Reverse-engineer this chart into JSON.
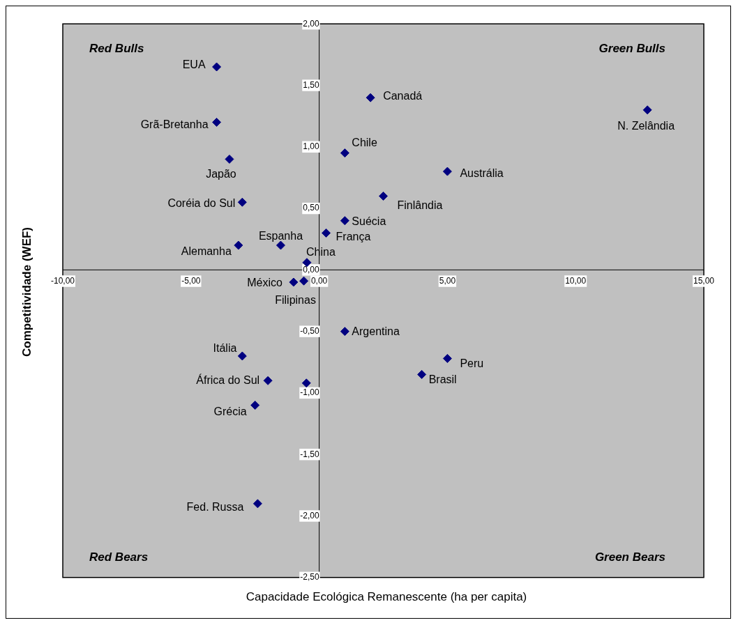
{
  "chart_data": {
    "type": "scatter",
    "xlabel": "Capacidade Ecológica Remanescente (ha per capita)",
    "ylabel": "Competitividade (WEF)",
    "xlim": [
      -10,
      15
    ],
    "xticks": [
      {
        "value": -10,
        "label": "-10,00"
      },
      {
        "value": -5,
        "label": "-5,00"
      },
      {
        "value": 0,
        "label": "0,00"
      },
      {
        "value": 5,
        "label": "5,00"
      },
      {
        "value": 10,
        "label": "10,00"
      },
      {
        "value": 15,
        "label": "15,00"
      }
    ],
    "ylim": [
      -2.5,
      2
    ],
    "yticks": [
      {
        "value": -2.5,
        "label": "-2,50"
      },
      {
        "value": -2,
        "label": "-2,00"
      },
      {
        "value": -1.5,
        "label": "-1,50"
      },
      {
        "value": -1,
        "label": "-1,00"
      },
      {
        "value": -0.5,
        "label": "-0,50"
      },
      {
        "value": 0,
        "label": "0,00"
      },
      {
        "value": 0.5,
        "label": "0,50"
      },
      {
        "value": 1,
        "label": "1,00"
      },
      {
        "value": 1.5,
        "label": "1,50"
      },
      {
        "value": 2,
        "label": "2,00"
      }
    ],
    "grid": false,
    "legend": false,
    "marker": "diamond",
    "series": [
      {
        "color": "#000080",
        "x": [
          -4.0,
          -4.0,
          -3.5,
          -3.0,
          -3.15,
          -1.5,
          -0.48,
          -1.0,
          -0.6,
          2.0,
          12.8,
          1.0,
          5.0,
          2.5,
          1.0,
          0.27,
          1.0,
          5.0,
          4.0,
          -3.0,
          -2.0,
          -0.5,
          -2.5,
          -2.4
        ],
        "values": [
          1.65,
          1.2,
          0.9,
          0.55,
          0.2,
          0.2,
          0.06,
          -0.1,
          -0.09,
          1.4,
          1.3,
          0.95,
          0.8,
          0.6,
          0.4,
          0.3,
          -0.5,
          -0.72,
          -0.85,
          -0.7,
          -0.9,
          -0.92,
          -1.1,
          -1.9
        ]
      }
    ],
    "annotations": [
      "Red Bulls",
      "Green Bulls",
      "Red Bears",
      "Green Bears",
      {
        "text": "EUA",
        "x": -4.0,
        "y": 1.65
      },
      {
        "text": "Grã-Bretanha",
        "x": -4.0,
        "y": 1.2
      },
      {
        "text": "Japão",
        "x": -3.5,
        "y": 0.9
      },
      {
        "text": "Coréia do Sul",
        "x": -3.0,
        "y": 0.55
      },
      {
        "text": "Alemanha",
        "x": -3.15,
        "y": 0.2
      },
      {
        "text": "Espanha",
        "x": -1.5,
        "y": 0.2
      },
      {
        "text": "China",
        "x": -0.48,
        "y": 0.06
      },
      {
        "text": "México",
        "x": -1.0,
        "y": -0.1
      },
      {
        "text": "Filipinas",
        "x": -0.6,
        "y": -0.09
      },
      {
        "text": "Canadá",
        "x": 2.0,
        "y": 1.4
      },
      {
        "text": "N. Zelândia",
        "x": 12.8,
        "y": 1.3
      },
      {
        "text": "Chile",
        "x": 1.0,
        "y": 0.95
      },
      {
        "text": "Austrália",
        "x": 5.0,
        "y": 0.8
      },
      {
        "text": "Finlândia",
        "x": 2.5,
        "y": 0.6
      },
      {
        "text": "Suécia",
        "x": 1.0,
        "y": 0.4
      },
      {
        "text": "França",
        "x": 0.27,
        "y": 0.3
      },
      {
        "text": "Argentina",
        "x": 1.0,
        "y": -0.5
      },
      {
        "text": "Peru",
        "x": 5.0,
        "y": -0.72
      },
      {
        "text": "Brasil",
        "x": 4.0,
        "y": -0.85
      },
      {
        "text": "Itália",
        "x": -3.0,
        "y": -0.7
      },
      {
        "text": "África do Sul",
        "x": -2.0,
        "y": -0.9
      },
      {
        "text": "Grécia",
        "x": -2.5,
        "y": -1.1
      },
      {
        "text": "Fed. Russa",
        "x": -2.4,
        "y": -1.9
      }
    ]
  }
}
